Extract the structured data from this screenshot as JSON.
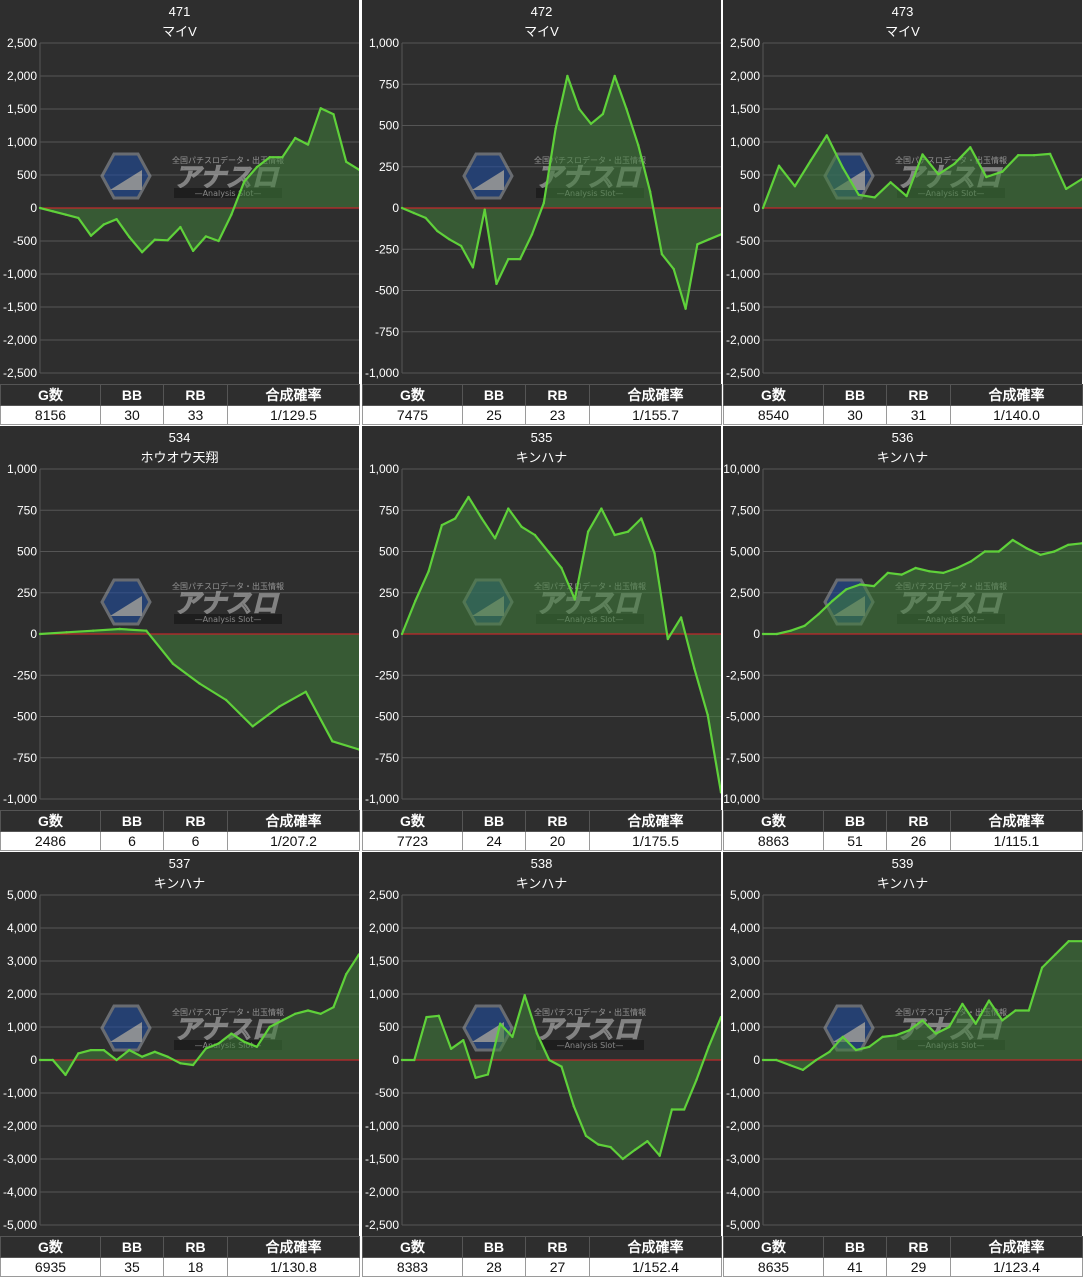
{
  "table_headers": [
    "G数",
    "BB",
    "RB",
    "合成確率"
  ],
  "watermark": {
    "small": "全国パチスロデータ・出玉情報",
    "logo": "アナスロ",
    "sub": "—Analysis Slot—"
  },
  "colors": {
    "panel_bg": "#2e2e2e",
    "grid": "#555555",
    "zero_line": "#c0292b",
    "series_line": "#5fd13a",
    "series_fill": "#3f7f3a"
  },
  "machines": [
    {
      "number": "471",
      "name": "マイV",
      "stats": {
        "games": "8156",
        "bb": "30",
        "rb": "33",
        "prob": "1/129.5"
      },
      "chart_data": {
        "type": "area",
        "ylim": [
          -2500,
          2500
        ],
        "yticks": [
          "2,500",
          "2,000",
          "1,500",
          "1,000",
          "500",
          "0",
          "-500",
          "-1,000",
          "-1,500",
          "-2,000",
          "-2,500"
        ],
        "values": [
          0,
          -50,
          -100,
          -150,
          -420,
          -250,
          -170,
          -440,
          -670,
          -480,
          -490,
          -290,
          -650,
          -430,
          -500,
          -100,
          400,
          620,
          770,
          770,
          1060,
          960,
          1510,
          1420,
          700,
          580
        ]
      }
    },
    {
      "number": "472",
      "name": "マイV",
      "stats": {
        "games": "7475",
        "bb": "25",
        "rb": "23",
        "prob": "1/155.7"
      },
      "chart_data": {
        "type": "area",
        "ylim": [
          -1000,
          1000
        ],
        "yticks": [
          "1,000",
          "750",
          "500",
          "250",
          "0",
          "-250",
          "-500",
          "-750",
          "-1,000"
        ],
        "values": [
          0,
          -30,
          -60,
          -140,
          -190,
          -230,
          -360,
          -10,
          -460,
          -310,
          -310,
          -160,
          30,
          480,
          800,
          600,
          510,
          570,
          800,
          600,
          380,
          100,
          -280,
          -370,
          -610,
          -220,
          -190,
          -160
        ]
      }
    },
    {
      "number": "473",
      "name": "マイV",
      "stats": {
        "games": "8540",
        "bb": "30",
        "rb": "31",
        "prob": "1/140.0"
      },
      "chart_data": {
        "type": "area",
        "ylim": [
          -2500,
          2500
        ],
        "yticks": [
          "2,500",
          "2,000",
          "1,500",
          "1,000",
          "500",
          "0",
          "-500",
          "-1,000",
          "-1,500",
          "-2,000",
          "-2,500"
        ],
        "values": [
          0,
          640,
          330,
          720,
          1100,
          610,
          200,
          160,
          390,
          180,
          810,
          510,
          670,
          920,
          470,
          550,
          800,
          800,
          820,
          290,
          440
        ]
      }
    },
    {
      "number": "534",
      "name": "ホウオウ天翔",
      "stats": {
        "games": "2486",
        "bb": "6",
        "rb": "6",
        "prob": "1/207.2"
      },
      "chart_data": {
        "type": "area",
        "ylim": [
          -1000,
          1000
        ],
        "yticks": [
          "1,000",
          "750",
          "500",
          "250",
          "0",
          "-250",
          "-500",
          "-750",
          "-1,000"
        ],
        "values": [
          0,
          10,
          20,
          30,
          20,
          -180,
          -300,
          -400,
          -560,
          -440,
          -350,
          -650,
          -700
        ]
      }
    },
    {
      "number": "535",
      "name": "キンハナ",
      "stats": {
        "games": "7723",
        "bb": "24",
        "rb": "20",
        "prob": "1/175.5"
      },
      "chart_data": {
        "type": "area",
        "ylim": [
          -1000,
          1000
        ],
        "yticks": [
          "1,000",
          "750",
          "500",
          "250",
          "0",
          "-250",
          "-500",
          "-750",
          "-1,000"
        ],
        "values": [
          0,
          200,
          380,
          660,
          700,
          830,
          700,
          580,
          760,
          650,
          600,
          500,
          400,
          210,
          620,
          760,
          600,
          620,
          700,
          490,
          -30,
          100,
          -210,
          -490,
          -960
        ]
      }
    },
    {
      "number": "536",
      "name": "キンハナ",
      "stats": {
        "games": "8863",
        "bb": "51",
        "rb": "26",
        "prob": "1/115.1"
      },
      "chart_data": {
        "type": "area",
        "ylim": [
          -10000,
          10000
        ],
        "yticks": [
          "10,000",
          "7,500",
          "5,000",
          "2,500",
          "0",
          "-2,500",
          "-5,000",
          "-7,500",
          "-10,000"
        ],
        "values": [
          0,
          0,
          200,
          500,
          1200,
          2000,
          2700,
          3000,
          2900,
          3700,
          3600,
          4000,
          3800,
          3700,
          4000,
          4400,
          5000,
          5000,
          5700,
          5200,
          4800,
          5000,
          5400,
          5500
        ]
      }
    },
    {
      "number": "537",
      "name": "キンハナ",
      "stats": {
        "games": "6935",
        "bb": "35",
        "rb": "18",
        "prob": "1/130.8"
      },
      "chart_data": {
        "type": "area",
        "ylim": [
          -5000,
          5000
        ],
        "yticks": [
          "5,000",
          "4,000",
          "3,000",
          "2,000",
          "1,000",
          "0",
          "-1,000",
          "-2,000",
          "-3,000",
          "-4,000",
          "-5,000"
        ],
        "values": [
          0,
          0,
          -450,
          200,
          300,
          300,
          0,
          300,
          100,
          250,
          100,
          -100,
          -150,
          350,
          500,
          800,
          550,
          400,
          1000,
          1200,
          1400,
          1500,
          1400,
          1600,
          2600,
          3200
        ]
      }
    },
    {
      "number": "538",
      "name": "キンハナ",
      "stats": {
        "games": "8383",
        "bb": "28",
        "rb": "27",
        "prob": "1/152.4"
      },
      "chart_data": {
        "type": "area",
        "ylim": [
          -2500,
          2500
        ],
        "yticks": [
          "2,500",
          "2,000",
          "1,500",
          "1,000",
          "500",
          "0",
          "-500",
          "-1,000",
          "-1,500",
          "-2,000",
          "-2,500"
        ],
        "values": [
          0,
          0,
          650,
          670,
          170,
          300,
          -270,
          -220,
          550,
          350,
          980,
          400,
          0,
          -100,
          -700,
          -1150,
          -1280,
          -1320,
          -1500,
          -1360,
          -1230,
          -1450,
          -750,
          -750,
          -300,
          200,
          650
        ]
      }
    },
    {
      "number": "539",
      "name": "キンハナ",
      "stats": {
        "games": "8635",
        "bb": "41",
        "rb": "29",
        "prob": "1/123.4"
      },
      "chart_data": {
        "type": "area",
        "ylim": [
          -5000,
          5000
        ],
        "yticks": [
          "5,000",
          "4,000",
          "3,000",
          "2,000",
          "1,000",
          "0",
          "-1,000",
          "-2,000",
          "-3,000",
          "-4,000",
          "-5,000"
        ],
        "values": [
          0,
          0,
          -150,
          -300,
          0,
          250,
          700,
          300,
          400,
          700,
          750,
          900,
          1200,
          800,
          1000,
          1700,
          1100,
          1800,
          1200,
          1500,
          1500,
          2800,
          3200,
          3600,
          3600
        ]
      }
    }
  ]
}
